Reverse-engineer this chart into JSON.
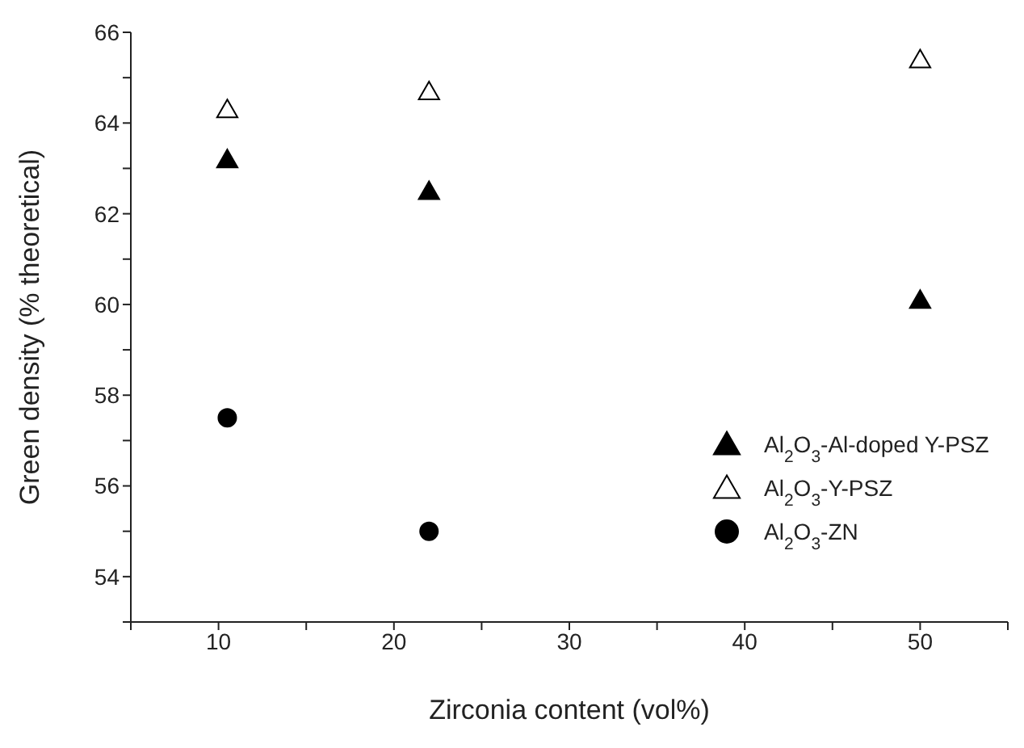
{
  "chart_data": {
    "type": "scatter",
    "xlabel": "Zirconia content (vol%)",
    "ylabel": "Green density (% theoretical)",
    "x": [
      10.5,
      22,
      50
    ],
    "series": [
      {
        "name": "Al$_{2}$O$_{3}$-Al-doped Y-PSZ",
        "color": "#000000",
        "marker": "triangle",
        "values": [
          63.2,
          62.5,
          60.1
        ]
      },
      {
        "name": "Al$_{2}$O$_{3}$-Y-PSZ",
        "color": "#ffffff",
        "marker": "triangle",
        "values": [
          64.3,
          64.7,
          65.4
        ]
      },
      {
        "name": "Al$_{2}$O$_{3}$-ZN",
        "color": "#000000",
        "marker": "circle",
        "values": [
          57.5,
          55.0,
          null
        ]
      }
    ],
    "xlim": [
      5,
      55
    ],
    "xticks": [
      {
        "value": 5,
        "label": null
      },
      10,
      {
        "value": 15,
        "label": null
      },
      20,
      {
        "value": 25,
        "label": null
      },
      30,
      {
        "value": 35,
        "label": null
      },
      40,
      {
        "value": 45,
        "label": null
      },
      50,
      {
        "value": 55,
        "label": null
      }
    ],
    "ylim": [
      53,
      66
    ],
    "yticks": [
      {
        "value": 53,
        "label": null
      },
      54,
      {
        "value": 55,
        "label": null
      },
      56,
      {
        "value": 57,
        "label": null
      },
      58,
      {
        "value": 59,
        "label": null
      },
      60,
      {
        "value": 61,
        "label": null
      },
      62,
      {
        "value": 63,
        "label": null
      },
      64,
      {
        "value": 65,
        "label": null
      },
      66
    ],
    "grid": false,
    "legend": "right"
  }
}
